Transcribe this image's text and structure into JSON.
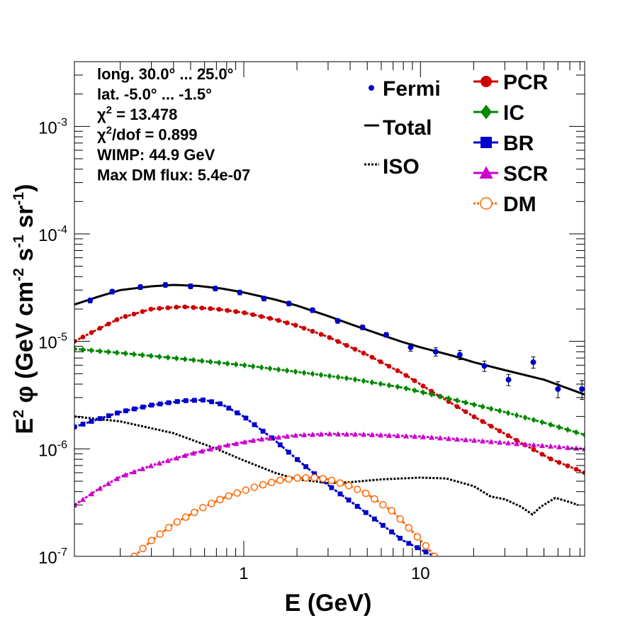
{
  "chart_data": {
    "type": "scatter",
    "title": "",
    "xlabel": "E (GeV)",
    "ylabel": "E2 φ (GeV cm-2 s-1 sr-1)",
    "x_scale": "log",
    "y_scale": "log",
    "xlim": [
      0.11,
      85
    ],
    "ylim": [
      1e-07,
      0.004
    ],
    "x_ticks": [
      {
        "value": 1,
        "label": "1"
      },
      {
        "value": 10,
        "label": "10"
      }
    ],
    "y_ticks": [
      {
        "value": 1e-07,
        "base": "10",
        "exp": "-7"
      },
      {
        "value": 1e-06,
        "base": "10",
        "exp": "-6"
      },
      {
        "value": 1e-05,
        "base": "10",
        "exp": "-5"
      },
      {
        "value": 0.0001,
        "base": "10",
        "exp": "-4"
      },
      {
        "value": 0.001,
        "base": "10",
        "exp": "-3"
      }
    ],
    "info_lines": [
      {
        "text": "long. 30.0° ... 25.0°"
      },
      {
        "text": "lat. -5.0° ... -1.5°"
      },
      {
        "pre": "χ",
        "sup": "2",
        "post": " = 13.478"
      },
      {
        "pre": "χ",
        "sup": "2",
        "post": "/dof = 0.899"
      },
      {
        "text": "WIMP: 44.9 GeV"
      },
      {
        "text": "Max DM flux: 5.4e-07"
      }
    ],
    "fermi": {
      "name": "Fermi",
      "color": "#0000cc",
      "points": [
        {
          "x": 0.135,
          "y": 2.4e-05,
          "err": 0.05
        },
        {
          "x": 0.18,
          "y": 2.9e-05,
          "err": 0.05
        },
        {
          "x": 0.26,
          "y": 3.2e-05,
          "err": 0.05
        },
        {
          "x": 0.36,
          "y": 3.35e-05,
          "err": 0.05
        },
        {
          "x": 0.5,
          "y": 3.25e-05,
          "err": 0.05
        },
        {
          "x": 0.69,
          "y": 3.1e-05,
          "err": 0.05
        },
        {
          "x": 0.95,
          "y": 2.85e-05,
          "err": 0.05
        },
        {
          "x": 1.3,
          "y": 2.5e-05,
          "err": 0.05
        },
        {
          "x": 1.8,
          "y": 2.25e-05,
          "err": 0.05
        },
        {
          "x": 2.45,
          "y": 1.95e-05,
          "err": 0.05
        },
        {
          "x": 3.4,
          "y": 1.55e-05,
          "err": 0.05
        },
        {
          "x": 4.7,
          "y": 1.35e-05,
          "err": 0.05
        },
        {
          "x": 6.4,
          "y": 1.15e-05,
          "err": 0.05
        },
        {
          "x": 8.8,
          "y": 8.8e-06,
          "err": 0.08
        },
        {
          "x": 12.2,
          "y": 8e-06,
          "err": 0.09
        },
        {
          "x": 16.7,
          "y": 7.5e-06,
          "err": 0.1
        },
        {
          "x": 23,
          "y": 5.9e-06,
          "err": 0.11
        },
        {
          "x": 31.5,
          "y": 4.4e-06,
          "err": 0.12
        },
        {
          "x": 43.5,
          "y": 6.4e-06,
          "err": 0.12
        },
        {
          "x": 60,
          "y": 3.6e-06,
          "err": 0.17
        },
        {
          "x": 82,
          "y": 3.6e-06,
          "err": 0.2
        }
      ]
    },
    "series": [
      {
        "name": "Total",
        "color": "#000000",
        "style": "solid",
        "points": [
          [
            0.11,
            2.2e-05
          ],
          [
            0.15,
            2.6e-05
          ],
          [
            0.2,
            3e-05
          ],
          [
            0.3,
            3.25e-05
          ],
          [
            0.4,
            3.35e-05
          ],
          [
            0.55,
            3.28e-05
          ],
          [
            0.75,
            3.1e-05
          ],
          [
            1.0,
            2.85e-05
          ],
          [
            1.5,
            2.45e-05
          ],
          [
            2.0,
            2.15e-05
          ],
          [
            3.0,
            1.72e-05
          ],
          [
            4.0,
            1.45e-05
          ],
          [
            6.0,
            1.15e-05
          ],
          [
            8.0,
            9.8e-06
          ],
          [
            10,
            8.8e-06
          ],
          [
            15,
            7.4e-06
          ],
          [
            20,
            6.4e-06
          ],
          [
            30,
            5.4e-06
          ],
          [
            50,
            4.4e-06
          ],
          [
            85,
            3.2e-06
          ]
        ]
      },
      {
        "name": "ISO",
        "color": "#000000",
        "style": "dotted",
        "points": [
          [
            0.11,
            2e-06
          ],
          [
            0.2,
            1.8e-06
          ],
          [
            0.4,
            1.4e-06
          ],
          [
            0.7,
            1e-06
          ],
          [
            1.0,
            7.8e-07
          ],
          [
            1.5,
            6e-07
          ],
          [
            2.0,
            5.2e-07
          ],
          [
            2.5,
            5e-07
          ],
          [
            3.0,
            4.8e-07
          ],
          [
            4.0,
            4.9e-07
          ],
          [
            6.0,
            5.2e-07
          ],
          [
            10,
            5.4e-07
          ],
          [
            14,
            5.3e-07
          ],
          [
            20,
            4.5e-07
          ],
          [
            25,
            3.6e-07
          ],
          [
            30,
            3.4e-07
          ],
          [
            37,
            2.9e-07
          ],
          [
            43,
            2.45e-07
          ],
          [
            48,
            2.9e-07
          ],
          [
            58,
            3.5e-07
          ],
          [
            70,
            3.2e-07
          ],
          [
            78,
            3e-07
          ]
        ]
      },
      {
        "name": "PCR",
        "color": "#cc0000",
        "style": "marker",
        "marker": "circle",
        "points": [
          [
            0.11,
            1e-05
          ],
          [
            0.15,
            1.3e-05
          ],
          [
            0.2,
            1.65e-05
          ],
          [
            0.3,
            2e-05
          ],
          [
            0.45,
            2.1e-05
          ],
          [
            0.7,
            2e-05
          ],
          [
            1.0,
            1.85e-05
          ],
          [
            1.5,
            1.6e-05
          ],
          [
            2.0,
            1.4e-05
          ],
          [
            3.0,
            1.1e-05
          ],
          [
            5.0,
            7.5e-06
          ],
          [
            8.0,
            5e-06
          ],
          [
            12,
            3.3e-06
          ],
          [
            20,
            2e-06
          ],
          [
            35,
            1.2e-06
          ],
          [
            55,
            8e-07
          ],
          [
            85,
            6e-07
          ]
        ]
      },
      {
        "name": "IC",
        "color": "#008800",
        "style": "marker",
        "marker": "diamond",
        "points": [
          [
            0.11,
            8.5e-06
          ],
          [
            0.2,
            7.8e-06
          ],
          [
            0.4,
            7e-06
          ],
          [
            1.0,
            6e-06
          ],
          [
            2.0,
            5.2e-06
          ],
          [
            4.0,
            4.5e-06
          ],
          [
            8.0,
            3.7e-06
          ],
          [
            15,
            2.9e-06
          ],
          [
            30,
            2.2e-06
          ],
          [
            50,
            1.75e-06
          ],
          [
            85,
            1.35e-06
          ]
        ]
      },
      {
        "name": "BR",
        "color": "#0000cc",
        "style": "marker",
        "marker": "square",
        "points": [
          [
            0.11,
            1.6e-06
          ],
          [
            0.2,
            2.2e-06
          ],
          [
            0.3,
            2.55e-06
          ],
          [
            0.45,
            2.8e-06
          ],
          [
            0.6,
            2.85e-06
          ],
          [
            0.75,
            2.6e-06
          ],
          [
            1.0,
            2e-06
          ],
          [
            1.5,
            1.2e-06
          ],
          [
            2.0,
            8e-07
          ],
          [
            3.0,
            4.6e-07
          ],
          [
            5.0,
            2.5e-07
          ],
          [
            8.0,
            1.4e-07
          ],
          [
            12,
            1e-07
          ]
        ]
      },
      {
        "name": "SCR",
        "color": "#cc00cc",
        "style": "marker",
        "marker": "triangle",
        "points": [
          [
            0.11,
            3e-07
          ],
          [
            0.15,
            4.2e-07
          ],
          [
            0.2,
            5.5e-07
          ],
          [
            0.3,
            7e-07
          ],
          [
            0.5,
            9e-07
          ],
          [
            0.8,
            1.08e-06
          ],
          [
            1.2,
            1.22e-06
          ],
          [
            2.0,
            1.34e-06
          ],
          [
            3.0,
            1.38e-06
          ],
          [
            5.0,
            1.36e-06
          ],
          [
            10,
            1.3e-06
          ],
          [
            20,
            1.2e-06
          ],
          [
            40,
            1.1e-06
          ],
          [
            85,
            1e-06
          ]
        ]
      },
      {
        "name": "DM",
        "color": "#ff6600",
        "style": "marker",
        "marker": "open-circle",
        "points": [
          [
            0.24,
            1e-07
          ],
          [
            0.3,
            1.4e-07
          ],
          [
            0.4,
            2e-07
          ],
          [
            0.6,
            2.9e-07
          ],
          [
            0.8,
            3.6e-07
          ],
          [
            1.2,
            4.5e-07
          ],
          [
            1.6,
            5.1e-07
          ],
          [
            2.0,
            5.35e-07
          ],
          [
            2.5,
            5.4e-07
          ],
          [
            3.0,
            5.2e-07
          ],
          [
            4.0,
            4.5e-07
          ],
          [
            5.0,
            3.8e-07
          ],
          [
            7.0,
            2.6e-07
          ],
          [
            9.0,
            1.7e-07
          ],
          [
            11,
            1.2e-07
          ],
          [
            12,
            1e-07
          ]
        ]
      }
    ]
  }
}
